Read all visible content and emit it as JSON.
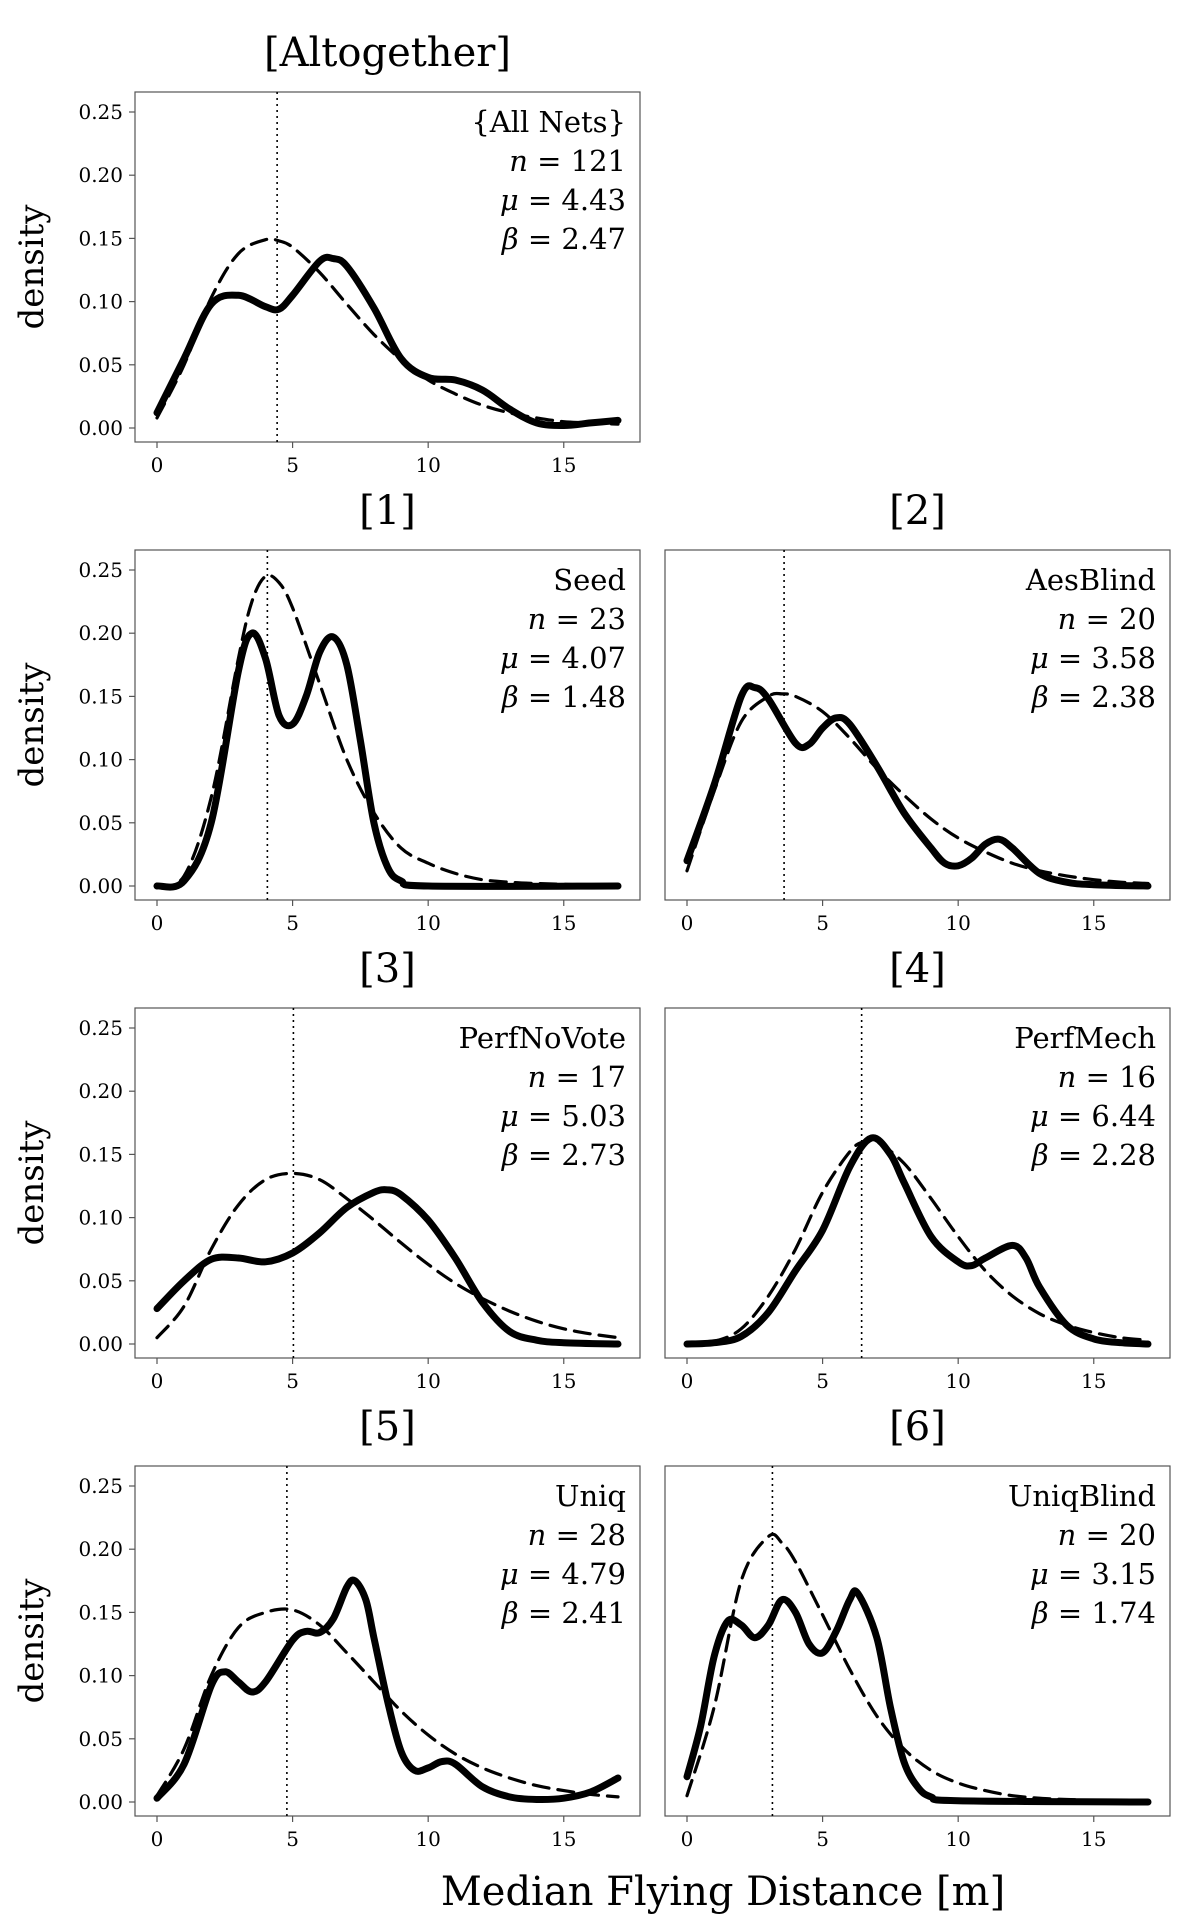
{
  "figure": {
    "xlabel": "Median Flying Distance [m]",
    "ylabel": "density"
  },
  "chart_data": [
    {
      "type": "line",
      "title": "[Altogether]",
      "annotation": {
        "name": "{All Nets}",
        "n": "121",
        "mu": "4.43",
        "beta": "2.47"
      },
      "xlim": [
        0,
        17
      ],
      "ylim": [
        0,
        0.25
      ],
      "xticks": [
        0,
        5,
        10,
        15
      ],
      "yticks": [
        0.0,
        0.05,
        0.1,
        0.15,
        0.2,
        0.25
      ],
      "median": 4.43,
      "kde": [
        [
          0,
          0.012
        ],
        [
          1,
          0.055
        ],
        [
          2,
          0.098
        ],
        [
          3,
          0.105
        ],
        [
          4,
          0.096
        ],
        [
          4.5,
          0.094
        ],
        [
          5,
          0.105
        ],
        [
          6,
          0.132
        ],
        [
          6.5,
          0.134
        ],
        [
          7,
          0.128
        ],
        [
          8,
          0.095
        ],
        [
          9,
          0.055
        ],
        [
          10,
          0.04
        ],
        [
          11,
          0.038
        ],
        [
          12,
          0.03
        ],
        [
          13,
          0.015
        ],
        [
          14,
          0.004
        ],
        [
          15,
          0.002
        ],
        [
          16,
          0.004
        ],
        [
          17,
          0.006
        ]
      ],
      "fit": [
        [
          0,
          0.008
        ],
        [
          1,
          0.05
        ],
        [
          2,
          0.103
        ],
        [
          3,
          0.138
        ],
        [
          4,
          0.149
        ],
        [
          4.5,
          0.148
        ],
        [
          5,
          0.143
        ],
        [
          6,
          0.123
        ],
        [
          7,
          0.098
        ],
        [
          8,
          0.074
        ],
        [
          9,
          0.054
        ],
        [
          10,
          0.038
        ],
        [
          11,
          0.027
        ],
        [
          12,
          0.018
        ],
        [
          13,
          0.012
        ],
        [
          14,
          0.008
        ],
        [
          15,
          0.005
        ],
        [
          16,
          0.004
        ],
        [
          17,
          0.003
        ]
      ]
    },
    {
      "type": "line",
      "title": "[1]",
      "annotation": {
        "name": "Seed",
        "n": "23",
        "mu": "4.07",
        "beta": "1.48"
      },
      "xlim": [
        0,
        17
      ],
      "ylim": [
        0,
        0.25
      ],
      "xticks": [
        0,
        5,
        10,
        15
      ],
      "yticks": [
        0.0,
        0.05,
        0.1,
        0.15,
        0.2,
        0.25
      ],
      "median": 4.07,
      "kde": [
        [
          0,
          0.0
        ],
        [
          1,
          0.004
        ],
        [
          2,
          0.05
        ],
        [
          3,
          0.17
        ],
        [
          3.5,
          0.2
        ],
        [
          4,
          0.18
        ],
        [
          4.5,
          0.135
        ],
        [
          5,
          0.128
        ],
        [
          5.5,
          0.15
        ],
        [
          6,
          0.185
        ],
        [
          6.5,
          0.197
        ],
        [
          7,
          0.175
        ],
        [
          7.5,
          0.115
        ],
        [
          8,
          0.05
        ],
        [
          8.5,
          0.015
        ],
        [
          9,
          0.004
        ],
        [
          10,
          0.0
        ],
        [
          17,
          0.0
        ]
      ],
      "fit": [
        [
          0,
          0.0
        ],
        [
          1,
          0.008
        ],
        [
          2,
          0.07
        ],
        [
          3,
          0.18
        ],
        [
          3.5,
          0.225
        ],
        [
          4,
          0.245
        ],
        [
          4.5,
          0.24
        ],
        [
          5,
          0.22
        ],
        [
          6,
          0.16
        ],
        [
          7,
          0.1
        ],
        [
          8,
          0.058
        ],
        [
          9,
          0.03
        ],
        [
          10,
          0.018
        ],
        [
          11,
          0.01
        ],
        [
          12,
          0.005
        ],
        [
          13,
          0.003
        ],
        [
          14,
          0.002
        ],
        [
          17,
          0.0
        ]
      ]
    },
    {
      "type": "line",
      "title": "[2]",
      "annotation": {
        "name": "AesBlind",
        "n": "20",
        "mu": "3.58",
        "beta": "2.38"
      },
      "xlim": [
        0,
        17
      ],
      "ylim": [
        0,
        0.25
      ],
      "xticks": [
        0,
        5,
        10,
        15
      ],
      "yticks": [
        0.0,
        0.05,
        0.1,
        0.15,
        0.2,
        0.25
      ],
      "median": 3.58,
      "kde": [
        [
          0,
          0.02
        ],
        [
          1,
          0.08
        ],
        [
          2,
          0.15
        ],
        [
          2.5,
          0.157
        ],
        [
          3,
          0.148
        ],
        [
          4,
          0.113
        ],
        [
          4.5,
          0.112
        ],
        [
          5,
          0.125
        ],
        [
          5.5,
          0.133
        ],
        [
          6,
          0.128
        ],
        [
          7,
          0.095
        ],
        [
          8,
          0.058
        ],
        [
          9,
          0.03
        ],
        [
          9.5,
          0.018
        ],
        [
          10,
          0.016
        ],
        [
          10.5,
          0.022
        ],
        [
          11,
          0.033
        ],
        [
          11.5,
          0.037
        ],
        [
          12,
          0.03
        ],
        [
          13,
          0.01
        ],
        [
          14,
          0.003
        ],
        [
          15,
          0.001
        ],
        [
          17,
          0.0
        ]
      ],
      "fit": [
        [
          0,
          0.012
        ],
        [
          1,
          0.075
        ],
        [
          2,
          0.13
        ],
        [
          3,
          0.15
        ],
        [
          3.5,
          0.152
        ],
        [
          4,
          0.15
        ],
        [
          5,
          0.138
        ],
        [
          6,
          0.117
        ],
        [
          7,
          0.093
        ],
        [
          8,
          0.072
        ],
        [
          9,
          0.053
        ],
        [
          10,
          0.038
        ],
        [
          11,
          0.027
        ],
        [
          12,
          0.018
        ],
        [
          13,
          0.012
        ],
        [
          14,
          0.008
        ],
        [
          15,
          0.005
        ],
        [
          16,
          0.003
        ],
        [
          17,
          0.002
        ]
      ]
    },
    {
      "type": "line",
      "title": "[3]",
      "annotation": {
        "name": "PerfNoVote",
        "n": "17",
        "mu": "5.03",
        "beta": "2.73"
      },
      "xlim": [
        0,
        17
      ],
      "ylim": [
        0,
        0.25
      ],
      "xticks": [
        0,
        5,
        10,
        15
      ],
      "yticks": [
        0.0,
        0.05,
        0.1,
        0.15,
        0.2,
        0.25
      ],
      "median": 5.03,
      "kde": [
        [
          0,
          0.028
        ],
        [
          1,
          0.05
        ],
        [
          2,
          0.067
        ],
        [
          3,
          0.068
        ],
        [
          4,
          0.065
        ],
        [
          5,
          0.072
        ],
        [
          6,
          0.088
        ],
        [
          7,
          0.108
        ],
        [
          8,
          0.12
        ],
        [
          8.5,
          0.122
        ],
        [
          9,
          0.118
        ],
        [
          10,
          0.098
        ],
        [
          11,
          0.068
        ],
        [
          12,
          0.033
        ],
        [
          13,
          0.01
        ],
        [
          14,
          0.003
        ],
        [
          15,
          0.001
        ],
        [
          17,
          0.0
        ]
      ],
      "fit": [
        [
          0,
          0.005
        ],
        [
          1,
          0.03
        ],
        [
          2,
          0.075
        ],
        [
          3,
          0.11
        ],
        [
          4,
          0.13
        ],
        [
          5,
          0.135
        ],
        [
          6,
          0.13
        ],
        [
          7,
          0.115
        ],
        [
          8,
          0.098
        ],
        [
          9,
          0.08
        ],
        [
          10,
          0.063
        ],
        [
          11,
          0.048
        ],
        [
          12,
          0.036
        ],
        [
          13,
          0.026
        ],
        [
          14,
          0.018
        ],
        [
          15,
          0.012
        ],
        [
          16,
          0.008
        ],
        [
          17,
          0.005
        ]
      ]
    },
    {
      "type": "line",
      "title": "[4]",
      "annotation": {
        "name": "PerfMech",
        "n": "16",
        "mu": "6.44",
        "beta": "2.28"
      },
      "xlim": [
        0,
        17
      ],
      "ylim": [
        0,
        0.25
      ],
      "xticks": [
        0,
        5,
        10,
        15
      ],
      "yticks": [
        0.0,
        0.05,
        0.1,
        0.15,
        0.2,
        0.25
      ],
      "median": 6.44,
      "kde": [
        [
          0,
          0.0
        ],
        [
          1,
          0.001
        ],
        [
          2,
          0.006
        ],
        [
          3,
          0.025
        ],
        [
          4,
          0.058
        ],
        [
          5,
          0.09
        ],
        [
          6,
          0.14
        ],
        [
          6.8,
          0.163
        ],
        [
          7.5,
          0.15
        ],
        [
          8,
          0.128
        ],
        [
          9,
          0.085
        ],
        [
          10,
          0.065
        ],
        [
          10.5,
          0.062
        ],
        [
          11,
          0.068
        ],
        [
          12,
          0.078
        ],
        [
          12.5,
          0.068
        ],
        [
          13,
          0.045
        ],
        [
          14,
          0.015
        ],
        [
          15,
          0.004
        ],
        [
          16,
          0.001
        ],
        [
          17,
          0.0
        ]
      ],
      "fit": [
        [
          0,
          0.0
        ],
        [
          1,
          0.002
        ],
        [
          2,
          0.012
        ],
        [
          3,
          0.038
        ],
        [
          4,
          0.075
        ],
        [
          5,
          0.12
        ],
        [
          6,
          0.152
        ],
        [
          6.5,
          0.16
        ],
        [
          7,
          0.16
        ],
        [
          8,
          0.143
        ],
        [
          9,
          0.115
        ],
        [
          10,
          0.085
        ],
        [
          11,
          0.058
        ],
        [
          12,
          0.038
        ],
        [
          13,
          0.024
        ],
        [
          14,
          0.015
        ],
        [
          15,
          0.009
        ],
        [
          16,
          0.005
        ],
        [
          17,
          0.003
        ]
      ]
    },
    {
      "type": "line",
      "title": "[5]",
      "annotation": {
        "name": "Uniq",
        "n": "28",
        "mu": "4.79",
        "beta": "2.41"
      },
      "xlim": [
        0,
        17
      ],
      "ylim": [
        0,
        0.25
      ],
      "xticks": [
        0,
        5,
        10,
        15
      ],
      "yticks": [
        0.0,
        0.05,
        0.1,
        0.15,
        0.2,
        0.25
      ],
      "median": 4.79,
      "kde": [
        [
          0,
          0.003
        ],
        [
          1,
          0.03
        ],
        [
          2,
          0.092
        ],
        [
          2.5,
          0.103
        ],
        [
          3,
          0.095
        ],
        [
          3.5,
          0.087
        ],
        [
          4,
          0.095
        ],
        [
          5,
          0.128
        ],
        [
          5.5,
          0.135
        ],
        [
          6,
          0.134
        ],
        [
          6.5,
          0.145
        ],
        [
          7,
          0.17
        ],
        [
          7.3,
          0.175
        ],
        [
          7.7,
          0.16
        ],
        [
          8,
          0.13
        ],
        [
          8.5,
          0.08
        ],
        [
          9,
          0.04
        ],
        [
          9.5,
          0.025
        ],
        [
          10,
          0.027
        ],
        [
          10.5,
          0.032
        ],
        [
          11,
          0.03
        ],
        [
          12,
          0.012
        ],
        [
          13,
          0.004
        ],
        [
          14,
          0.002
        ],
        [
          15,
          0.003
        ],
        [
          16,
          0.008
        ],
        [
          17,
          0.019
        ]
      ],
      "fit": [
        [
          0,
          0.005
        ],
        [
          1,
          0.042
        ],
        [
          2,
          0.1
        ],
        [
          3,
          0.138
        ],
        [
          4,
          0.15
        ],
        [
          5,
          0.152
        ],
        [
          6,
          0.14
        ],
        [
          7,
          0.118
        ],
        [
          8,
          0.095
        ],
        [
          9,
          0.072
        ],
        [
          10,
          0.053
        ],
        [
          11,
          0.038
        ],
        [
          12,
          0.027
        ],
        [
          13,
          0.019
        ],
        [
          14,
          0.013
        ],
        [
          15,
          0.009
        ],
        [
          16,
          0.006
        ],
        [
          17,
          0.004
        ]
      ]
    },
    {
      "type": "line",
      "title": "[6]",
      "annotation": {
        "name": "UniqBlind",
        "n": "20",
        "mu": "3.15",
        "beta": "1.74"
      },
      "xlim": [
        0,
        17
      ],
      "ylim": [
        0,
        0.25
      ],
      "xticks": [
        0,
        5,
        10,
        15
      ],
      "yticks": [
        0.0,
        0.05,
        0.1,
        0.15,
        0.2,
        0.25
      ],
      "median": 3.15,
      "kde": [
        [
          0,
          0.02
        ],
        [
          0.5,
          0.06
        ],
        [
          1,
          0.115
        ],
        [
          1.5,
          0.143
        ],
        [
          2,
          0.14
        ],
        [
          2.5,
          0.13
        ],
        [
          3,
          0.14
        ],
        [
          3.5,
          0.16
        ],
        [
          4,
          0.15
        ],
        [
          4.5,
          0.125
        ],
        [
          5,
          0.118
        ],
        [
          5.5,
          0.135
        ],
        [
          6,
          0.16
        ],
        [
          6.3,
          0.165
        ],
        [
          7,
          0.13
        ],
        [
          7.5,
          0.075
        ],
        [
          8,
          0.032
        ],
        [
          8.5,
          0.012
        ],
        [
          9,
          0.004
        ],
        [
          10,
          0.001
        ],
        [
          17,
          0.0
        ]
      ],
      "fit": [
        [
          0,
          0.005
        ],
        [
          1,
          0.075
        ],
        [
          2,
          0.175
        ],
        [
          3,
          0.21
        ],
        [
          3.5,
          0.205
        ],
        [
          4,
          0.19
        ],
        [
          5,
          0.148
        ],
        [
          6,
          0.105
        ],
        [
          7,
          0.068
        ],
        [
          8,
          0.042
        ],
        [
          9,
          0.025
        ],
        [
          10,
          0.015
        ],
        [
          11,
          0.009
        ],
        [
          12,
          0.005
        ],
        [
          13,
          0.003
        ],
        [
          14,
          0.002
        ],
        [
          17,
          0.0
        ]
      ]
    }
  ]
}
